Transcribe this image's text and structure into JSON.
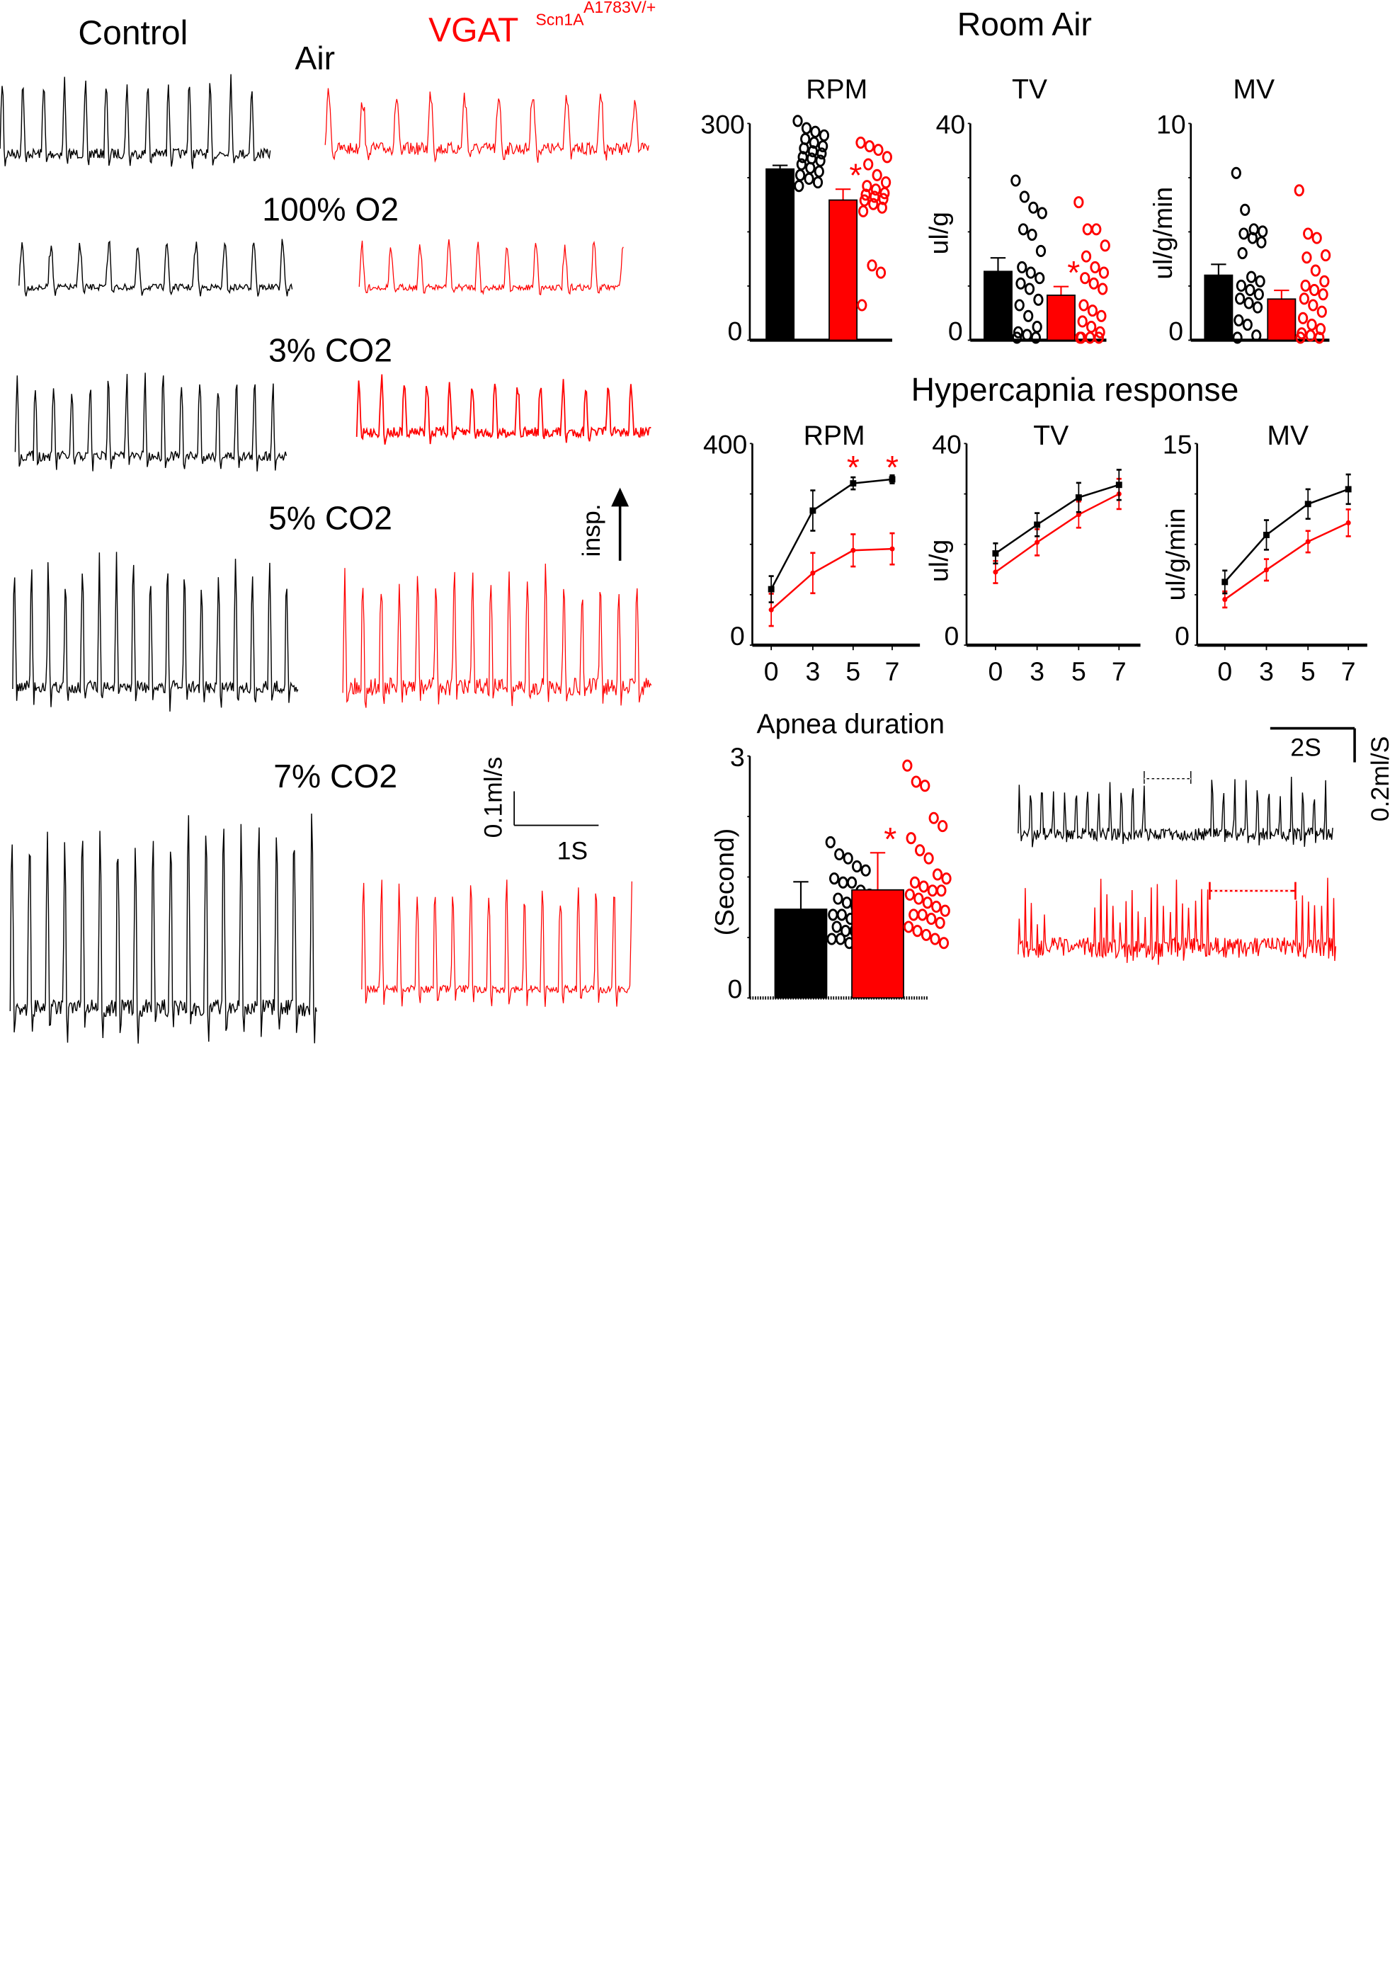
{
  "colors": {
    "control": "#000000",
    "mutant": "#ff0000"
  },
  "traces_panel": {
    "control_label": "Control",
    "mutant_label": "VGAT",
    "mutant_sup1": "Scn1A",
    "mutant_sup2": "A1783V/+",
    "conditions": [
      "Air",
      "100% O2",
      "3% CO2",
      "5% CO2",
      "7% CO2"
    ],
    "insp_label": "insp.",
    "scale_y": "0.1ml/s",
    "scale_x": "1S"
  },
  "room_air_title": "Room Air",
  "hypercapnia_title": "Hypercapnia response",
  "apnea_traces": {
    "scale_x": "2S",
    "scale_y": "0.2ml/S"
  },
  "chart_data": [
    {
      "id": "room_rpm",
      "type": "bar",
      "title": "RPM",
      "ylabel": "",
      "ylim": [
        0,
        300
      ],
      "yticks": [
        "0",
        "300"
      ],
      "series": [
        {
          "group": "control",
          "mean": 237,
          "sem": 5,
          "points": [
            300,
            290,
            285,
            280,
            275,
            270,
            265,
            262,
            258,
            255,
            250,
            248,
            245,
            240,
            235,
            230,
            225,
            220,
            215,
            210
          ]
        },
        {
          "group": "mutant",
          "mean": 194,
          "sem": 15,
          "points": [
            270,
            265,
            260,
            250,
            240,
            225,
            215,
            210,
            205,
            200,
            198,
            195,
            192,
            190,
            185,
            180,
            175,
            100,
            90,
            45
          ]
        }
      ],
      "significance": [
        "",
        "*"
      ]
    },
    {
      "id": "room_tv",
      "type": "bar",
      "title": "TV",
      "ylabel": "ul/g",
      "ylim": [
        0,
        40
      ],
      "yticks": [
        "0",
        "40"
      ],
      "series": [
        {
          "group": "control",
          "mean": 12.7,
          "sem": 2.5,
          "points": [
            29,
            26,
            24,
            23,
            20,
            19,
            16,
            13,
            12,
            11,
            10,
            9,
            7,
            6,
            4,
            2,
            1,
            0.5,
            0,
            0
          ]
        },
        {
          "group": "mutant",
          "mean": 8.3,
          "sem": 1.6,
          "points": [
            25,
            20,
            20,
            17,
            15,
            13,
            12,
            11,
            10,
            9,
            6,
            5,
            4,
            3,
            2,
            1,
            0,
            0,
            0,
            0
          ]
        }
      ],
      "significance": [
        "",
        "*"
      ]
    },
    {
      "id": "room_mv",
      "type": "bar",
      "title": "MV",
      "ylabel": "ul/g/min",
      "ylim": [
        0,
        10
      ],
      "yticks": [
        "0",
        "10"
      ],
      "series": [
        {
          "group": "control",
          "mean": 3.0,
          "sem": 0.5,
          "points": [
            7.6,
            5.9,
            5.0,
            4.9,
            4.8,
            4.6,
            4.4,
            3.9,
            2.8,
            2.6,
            2.4,
            2.2,
            2.0,
            1.8,
            1.6,
            1.4,
            0.8,
            0.6,
            0.1,
            0
          ]
        },
        {
          "group": "mutant",
          "mean": 1.9,
          "sem": 0.4,
          "points": [
            6.8,
            4.8,
            4.6,
            3.8,
            3.7,
            3.1,
            2.6,
            2.4,
            2.2,
            2.0,
            1.8,
            1.5,
            1.2,
            0.9,
            0.6,
            0.4,
            0.2,
            0.1,
            0,
            0
          ]
        }
      ],
      "significance": [
        "",
        ""
      ]
    },
    {
      "id": "hyp_rpm",
      "type": "line",
      "title": "RPM",
      "ylabel": "",
      "x": [
        0,
        3,
        5,
        7
      ],
      "xticks": [
        "0",
        "3",
        "5",
        "7"
      ],
      "ylim": [
        0,
        400
      ],
      "yticks": [
        "0",
        "400"
      ],
      "series": [
        {
          "group": "control",
          "y": [
            111,
            267,
            321,
            329
          ],
          "err": [
            26,
            40,
            12,
            8
          ]
        },
        {
          "group": "mutant",
          "y": [
            70,
            143,
            188,
            191
          ],
          "err": [
            32,
            40,
            32,
            31
          ]
        }
      ],
      "significance": [
        "",
        "",
        "*",
        "*"
      ]
    },
    {
      "id": "hyp_tv",
      "type": "line",
      "title": "TV",
      "ylabel": "ul/g",
      "x": [
        0,
        3,
        5,
        7
      ],
      "xticks": [
        "0",
        "3",
        "5",
        "7"
      ],
      "ylim": [
        0,
        40
      ],
      "yticks": [
        "0",
        "40"
      ],
      "series": [
        {
          "group": "control",
          "y": [
            18.2,
            23.9,
            29.3,
            31.8
          ],
          "err": [
            2,
            2.3,
            2.9,
            3
          ]
        },
        {
          "group": "mutant",
          "y": [
            14.5,
            20.4,
            25.9,
            30
          ],
          "err": [
            2.2,
            2.6,
            2.6,
            3
          ]
        }
      ],
      "significance": [
        "",
        "",
        "",
        ""
      ]
    },
    {
      "id": "hyp_mv",
      "type": "line",
      "title": "MV",
      "ylabel": "ul/g/min",
      "x": [
        0,
        3,
        5,
        7
      ],
      "xticks": [
        "0",
        "3",
        "5",
        "7"
      ],
      "ylim": [
        0,
        15
      ],
      "yticks": [
        "0",
        "15"
      ],
      "series": [
        {
          "group": "control",
          "y": [
            4.7,
            8.2,
            10.5,
            11.6
          ],
          "err": [
            0.85,
            1.1,
            1.1,
            1.1
          ]
        },
        {
          "group": "mutant",
          "y": [
            3.4,
            5.6,
            7.7,
            9.1
          ],
          "err": [
            0.6,
            0.8,
            0.8,
            1.0
          ]
        }
      ],
      "significance": [
        "",
        "",
        "",
        ""
      ]
    },
    {
      "id": "apnea",
      "type": "bar",
      "title": "Apnea duration",
      "ylabel": "(Second)",
      "ylim": [
        0,
        3
      ],
      "yticks": [
        "0",
        "3"
      ],
      "series": [
        {
          "group": "control",
          "mean": 1.1,
          "sem": 0.34,
          "points": [
            1.9,
            1.75,
            1.7,
            1.6,
            1.55,
            1.45,
            1.4,
            1.4,
            1.3,
            1.25,
            1.2,
            1.15,
            1.1,
            1.05,
            1.0,
            1.0,
            0.95,
            0.9,
            0.85,
            0.85,
            0.8,
            0.8,
            0.75,
            0.7,
            0.7,
            0.65
          ]
        },
        {
          "group": "mutant",
          "mean": 1.34,
          "sem": 0.46,
          "points": [
            2.85,
            2.65,
            2.6,
            2.2,
            2.1,
            1.95,
            1.8,
            1.7,
            1.5,
            1.45,
            1.4,
            1.35,
            1.3,
            1.3,
            1.25,
            1.2,
            1.15,
            1.1,
            1.05,
            1.0,
            1.0,
            0.95,
            0.9,
            0.85,
            0.8,
            0.75,
            0.7,
            0.65
          ]
        }
      ],
      "significance": [
        "",
        "*"
      ]
    }
  ]
}
